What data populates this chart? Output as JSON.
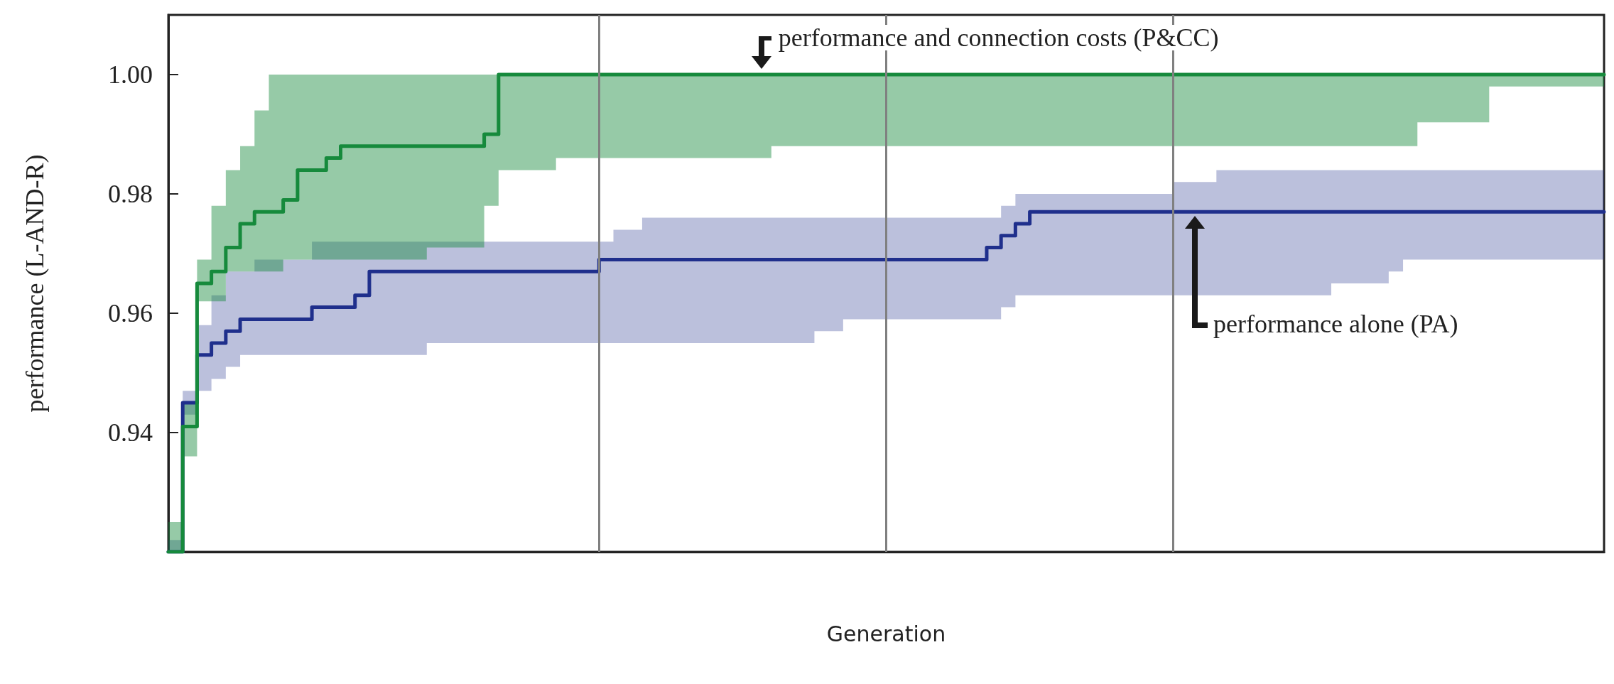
{
  "chart_data": {
    "type": "step",
    "xlabel": "Generation",
    "ylabel": "performance (L-AND-R)",
    "categories": [
      null,
      null,
      null,
      null,
      null,
      null,
      null,
      null,
      null,
      null,
      null,
      null,
      null,
      null,
      null,
      null,
      null,
      null,
      null,
      null,
      null,
      null,
      null,
      null,
      null,
      null,
      null,
      null,
      null,
      null,
      null,
      null,
      null,
      null,
      null,
      null,
      null,
      null,
      null,
      null,
      null,
      null,
      null,
      null,
      null,
      null,
      null,
      null,
      null,
      null,
      null,
      null,
      null,
      null,
      null,
      null,
      null,
      null,
      null,
      null,
      null,
      null,
      null,
      null,
      null,
      null,
      null,
      null,
      null,
      null,
      null,
      null,
      null,
      null,
      null,
      null,
      null,
      null,
      null,
      null,
      null,
      null,
      null,
      null,
      null,
      null,
      null,
      null,
      null,
      null,
      null,
      null,
      null,
      null,
      null,
      null,
      null,
      null,
      null,
      null,
      null
    ],
    "ylim": [
      0.92,
      1.01
    ],
    "yticks": [
      0.94,
      0.96,
      0.98,
      {
        "value": 1.0,
        "label": "1.00"
      }
    ],
    "tick_labels": "y",
    "marker": "none",
    "line_style": "solid",
    "grid": "x",
    "series": [
      {
        "color": "#1f2f8c",
        "values": [
          0.92,
          0.945,
          0.953,
          0.955,
          0.957,
          0.959,
          0.959,
          0.959,
          0.959,
          0.959,
          0.961,
          0.961,
          0.961,
          0.963,
          0.967,
          0.967,
          0.967,
          0.967,
          0.967,
          0.967,
          0.967,
          0.967,
          0.967,
          0.967,
          0.967,
          0.967,
          0.967,
          0.967,
          0.967,
          0.967,
          0.969,
          0.969,
          0.969,
          0.969,
          0.969,
          0.969,
          0.969,
          0.969,
          0.969,
          0.969,
          0.969,
          0.969,
          0.969,
          0.969,
          0.969,
          0.969,
          0.969,
          0.969,
          0.969,
          0.969,
          0.969,
          0.969,
          0.969,
          0.969,
          0.969,
          0.969,
          0.969,
          0.971,
          0.973,
          0.975,
          0.977,
          0.977,
          0.977,
          0.977,
          0.977,
          0.977,
          0.977,
          0.977,
          0.977,
          0.977,
          0.977,
          0.977,
          0.977,
          0.977,
          0.977,
          0.977,
          0.977,
          0.977,
          0.977,
          0.977,
          0.977,
          0.977,
          0.977,
          0.977,
          0.977,
          0.977,
          0.977,
          0.977,
          0.977,
          0.977,
          0.977,
          0.977,
          0.977,
          0.977,
          0.977,
          0.977,
          0.977,
          0.977,
          0.977,
          0.977,
          0.977
        ],
        "lower": [
          0.92,
          0.943,
          0.947,
          0.949,
          0.951,
          0.953,
          0.953,
          0.953,
          0.953,
          0.953,
          0.953,
          0.953,
          0.953,
          0.953,
          0.953,
          0.953,
          0.953,
          0.953,
          0.955,
          0.955,
          0.955,
          0.955,
          0.955,
          0.955,
          0.955,
          0.955,
          0.955,
          0.955,
          0.955,
          0.955,
          0.955,
          0.955,
          0.955,
          0.955,
          0.955,
          0.955,
          0.955,
          0.955,
          0.955,
          0.955,
          0.955,
          0.955,
          0.955,
          0.955,
          0.955,
          0.957,
          0.957,
          0.959,
          0.959,
          0.959,
          0.959,
          0.959,
          0.959,
          0.959,
          0.959,
          0.959,
          0.959,
          0.959,
          0.961,
          0.963,
          0.963,
          0.963,
          0.963,
          0.963,
          0.963,
          0.963,
          0.963,
          0.963,
          0.963,
          0.963,
          0.963,
          0.963,
          0.963,
          0.963,
          0.963,
          0.963,
          0.963,
          0.963,
          0.963,
          0.963,
          0.963,
          0.965,
          0.965,
          0.965,
          0.965,
          0.967,
          0.969,
          0.969,
          0.969,
          0.969,
          0.969,
          0.969,
          0.969,
          0.969,
          0.969,
          0.969,
          0.969,
          0.969,
          0.969,
          0.969,
          0.969
        ],
        "upper": [
          0.922,
          0.947,
          0.958,
          0.963,
          0.967,
          0.967,
          0.969,
          0.969,
          0.969,
          0.969,
          0.972,
          0.972,
          0.972,
          0.972,
          0.972,
          0.972,
          0.972,
          0.972,
          0.972,
          0.972,
          0.972,
          0.972,
          0.972,
          0.972,
          0.972,
          0.972,
          0.972,
          0.972,
          0.972,
          0.972,
          0.972,
          0.974,
          0.974,
          0.976,
          0.976,
          0.976,
          0.976,
          0.976,
          0.976,
          0.976,
          0.976,
          0.976,
          0.976,
          0.976,
          0.976,
          0.976,
          0.976,
          0.976,
          0.976,
          0.976,
          0.976,
          0.976,
          0.976,
          0.976,
          0.976,
          0.976,
          0.976,
          0.976,
          0.978,
          0.98,
          0.98,
          0.98,
          0.98,
          0.98,
          0.98,
          0.98,
          0.98,
          0.98,
          0.98,
          0.98,
          0.982,
          0.982,
          0.982,
          0.984,
          0.984,
          0.984,
          0.984,
          0.984,
          0.984,
          0.984,
          0.984,
          0.984,
          0.984,
          0.984,
          0.984,
          0.984,
          0.984,
          0.984,
          0.984,
          0.984,
          0.984,
          0.984,
          0.984,
          0.984,
          0.984,
          0.984,
          0.984,
          0.984,
          0.984,
          0.984,
          0.984
        ]
      },
      {
        "color": "#168a3c",
        "values": [
          0.92,
          0.941,
          0.965,
          0.967,
          0.971,
          0.975,
          0.977,
          0.977,
          0.979,
          0.984,
          0.984,
          0.986,
          0.988,
          0.988,
          0.988,
          0.988,
          0.988,
          0.988,
          0.988,
          0.988,
          0.988,
          0.988,
          0.99,
          1,
          1,
          1,
          1,
          1,
          1,
          1,
          1,
          1,
          1,
          1,
          1,
          1,
          1,
          1,
          1,
          1,
          1,
          1,
          1,
          1,
          1,
          1,
          1,
          1,
          1,
          1,
          1,
          1,
          1,
          1,
          1,
          1,
          1,
          1,
          1,
          1,
          1,
          1,
          1,
          1,
          1,
          1,
          1,
          1,
          1,
          1,
          1,
          1,
          1,
          1,
          1,
          1,
          1,
          1,
          1,
          1,
          1,
          1,
          1,
          1,
          1,
          1,
          1,
          1,
          1,
          1,
          1,
          1,
          1,
          1,
          1,
          1,
          1,
          1,
          1,
          1,
          1
        ],
        "lower": [
          0.92,
          0.936,
          0.962,
          0.962,
          0.967,
          0.967,
          0.967,
          0.967,
          0.969,
          0.969,
          0.969,
          0.969,
          0.969,
          0.969,
          0.969,
          0.969,
          0.969,
          0.969,
          0.971,
          0.971,
          0.971,
          0.971,
          0.978,
          0.984,
          0.984,
          0.984,
          0.984,
          0.986,
          0.986,
          0.986,
          0.986,
          0.986,
          0.986,
          0.986,
          0.986,
          0.986,
          0.986,
          0.986,
          0.986,
          0.986,
          0.986,
          0.986,
          0.988,
          0.988,
          0.988,
          0.988,
          0.988,
          0.988,
          0.988,
          0.988,
          0.988,
          0.988,
          0.988,
          0.988,
          0.988,
          0.988,
          0.988,
          0.988,
          0.988,
          0.988,
          0.988,
          0.988,
          0.988,
          0.988,
          0.988,
          0.988,
          0.988,
          0.988,
          0.988,
          0.988,
          0.988,
          0.988,
          0.988,
          0.988,
          0.988,
          0.988,
          0.988,
          0.988,
          0.988,
          0.988,
          0.988,
          0.988,
          0.988,
          0.988,
          0.988,
          0.988,
          0.988,
          0.992,
          0.992,
          0.992,
          0.992,
          0.992,
          0.998,
          0.998,
          0.998,
          0.998,
          0.998,
          0.998,
          0.998,
          0.998,
          0.998
        ],
        "upper": [
          0.925,
          0.945,
          0.969,
          0.978,
          0.984,
          0.988,
          0.994,
          1,
          1,
          1,
          1,
          1,
          1,
          1,
          1,
          1,
          1,
          1,
          1,
          1,
          1,
          1,
          1,
          1,
          1,
          1,
          1,
          1,
          1,
          1,
          1,
          1,
          1,
          1,
          1,
          1,
          1,
          1,
          1,
          1,
          1,
          1,
          1,
          1,
          1,
          1,
          1,
          1,
          1,
          1,
          1,
          1,
          1,
          1,
          1,
          1,
          1,
          1,
          1,
          1,
          1,
          1,
          1,
          1,
          1,
          1,
          1,
          1,
          1,
          1,
          1,
          1,
          1,
          1,
          1,
          1,
          1,
          1,
          1,
          1,
          1,
          1,
          1,
          1,
          1,
          1,
          1,
          1,
          1,
          1,
          1,
          1,
          1,
          1,
          1,
          1,
          1,
          1,
          1,
          1,
          1
        ]
      }
    ],
    "annotations": [
      "performance and connection costs (P&CC)",
      "performance alone (PA)"
    ]
  }
}
